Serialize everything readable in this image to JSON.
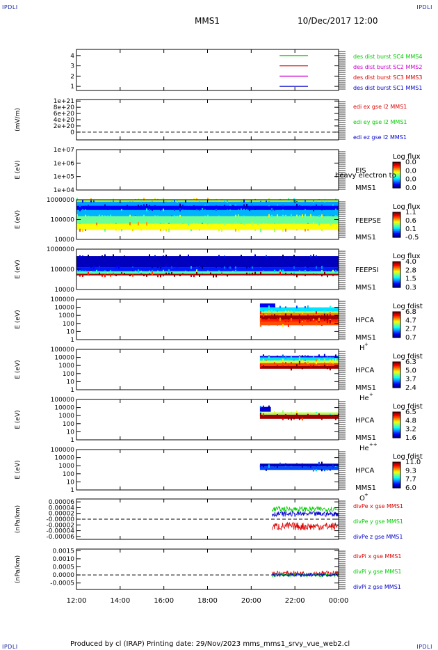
{
  "header": {
    "corner_label": "IPDLI",
    "spacecraft": "MMS1",
    "datetime": "10/Dec/2017 12:00"
  },
  "footer": {
    "text": "Produced by cl (IRAP)   Printing date: 29/Nov/2023   mms_mms1_srvy_vue_web2.cl"
  },
  "colors": {
    "black": "#000000",
    "blue": "#0000cc",
    "green": "#00cc00",
    "red": "#dd0000",
    "magenta": "#cc00cc"
  },
  "chart_data": {
    "type": "heatmap",
    "time_axis": {
      "ticks": [
        "12:00",
        "14:00",
        "16:00",
        "18:00",
        "20:00",
        "22:00",
        "00:00"
      ],
      "range_hours": [
        12,
        24
      ]
    },
    "panels": [
      {
        "id": "des-dist",
        "type": "line",
        "ylabel": "",
        "yscale": "linear",
        "ylim": [
          0.6,
          4.6
        ],
        "yticks": [
          {
            "v": 4,
            "label": "4"
          },
          {
            "v": 3,
            "label": "3"
          },
          {
            "v": 2,
            "label": "2"
          },
          {
            "v": 1,
            "label": "1"
          }
        ],
        "series": [
          {
            "name": "des dist burst SC1 MMS1",
            "color": "#0000cc",
            "y": 1,
            "x": [
              21.3,
              22.6
            ]
          },
          {
            "name": "des dist burst SC2 MMS2",
            "color": "#cc00cc",
            "y": 2,
            "x": [
              21.3,
              22.6
            ]
          },
          {
            "name": "des dist burst SC3 MMS3",
            "color": "#dd0000",
            "y": 3,
            "x": [
              21.3,
              22.6
            ]
          },
          {
            "name": "des dist burst SC4 MMS4",
            "color": "#00cc00",
            "y": 4,
            "x": [
              21.3,
              22.6
            ]
          }
        ],
        "legend_order": [
          3,
          1,
          2,
          0
        ]
      },
      {
        "id": "edi-e",
        "type": "line",
        "ylabel": "(mV/m)",
        "yscale": "linear",
        "ylim": [
          -2.5e+20,
          1.05e+21
        ],
        "yticks": [
          {
            "v": 1e+21,
            "label": "1e+21"
          },
          {
            "v": 8e+20,
            "label": "8e+20"
          },
          {
            "v": 6e+20,
            "label": "6e+20"
          },
          {
            "v": 4e+20,
            "label": "4e+20"
          },
          {
            "v": 2e+20,
            "label": "2e+20"
          },
          {
            "v": 0,
            "label": "0"
          }
        ],
        "zero_line": true,
        "series": [
          {
            "name": "edi ex gse l2 MMS1",
            "color": "#dd0000"
          },
          {
            "name": "edi ey gse l2 MMS1",
            "color": "#00cc00"
          },
          {
            "name": "edi ez gse l2 MMS1",
            "color": "#0000cc"
          }
        ]
      },
      {
        "id": "eis",
        "type": "spectrogram",
        "ylabel": "E (eV)",
        "yscale": "log",
        "ylim": [
          10000,
          10000000
        ],
        "yticks": [
          {
            "v": 10000000,
            "label": "1e+07"
          },
          {
            "v": 1000000,
            "label": "1e+06"
          },
          {
            "v": 100000,
            "label": "1e+05"
          },
          {
            "v": 10000,
            "label": "1e+04"
          }
        ],
        "labels": [
          "EIS",
          "MMS1"
        ],
        "overlay_text": "heavy electron to",
        "colorbar": {
          "title": "Log flux",
          "ticks": [
            "0.0",
            "0.0",
            "0.0",
            "0.0"
          ]
        },
        "bands": []
      },
      {
        "id": "feepse",
        "type": "spectrogram",
        "ylabel": "E (eV)",
        "yscale": "log",
        "ylim": [
          10000,
          1000000
        ],
        "yticks": [
          {
            "v": 1000000,
            "label": "1000000"
          },
          {
            "v": 100000,
            "label": "100000"
          },
          {
            "v": 10000,
            "label": "10000"
          }
        ],
        "labels": [
          "FEEPSE",
          "MMS1"
        ],
        "colorbar": {
          "title": "Log flux",
          "ticks": [
            "1.1",
            "0.6",
            "0.1",
            "-0.5"
          ]
        },
        "bands": [
          {
            "x": [
              12,
              24
            ],
            "e": [
              800000,
              1000000
            ],
            "level": 0.55
          },
          {
            "x": [
              12,
              24
            ],
            "e": [
              500000,
              800000
            ],
            "level": 0.28
          },
          {
            "x": [
              12,
              24
            ],
            "e": [
              300000,
              500000
            ],
            "level": 0.12
          },
          {
            "x": [
              12,
              24
            ],
            "e": [
              150000,
              300000
            ],
            "level": 0.3
          },
          {
            "x": [
              12,
              24
            ],
            "e": [
              60000,
              150000
            ],
            "level": 0.48
          },
          {
            "x": [
              12,
              24
            ],
            "e": [
              30000,
              60000
            ],
            "level": 0.62
          }
        ]
      },
      {
        "id": "feepsi",
        "type": "spectrogram",
        "ylabel": "E (eV)",
        "yscale": "log",
        "ylim": [
          10000,
          1000000
        ],
        "yticks": [
          {
            "v": 1000000,
            "label": "1000000"
          },
          {
            "v": 100000,
            "label": "100000"
          },
          {
            "v": 10000,
            "label": "10000"
          }
        ],
        "labels": [
          "FEEPSI",
          "MMS1"
        ],
        "colorbar": {
          "title": "Log flux",
          "ticks": [
            "4.0",
            "2.8",
            "1.5",
            "0.3"
          ]
        },
        "bands": [
          {
            "x": [
              12,
              24
            ],
            "e": [
              120000,
              450000
            ],
            "level": 0.06
          },
          {
            "x": [
              12,
              24
            ],
            "e": [
              80000,
              120000
            ],
            "level": 0.15
          },
          {
            "x": [
              12,
              24
            ],
            "e": [
              60000,
              80000
            ],
            "level": 0.45
          },
          {
            "x": [
              12,
              24
            ],
            "e": [
              50000,
              60000
            ],
            "level": 0.97
          }
        ]
      },
      {
        "id": "hpca-h",
        "type": "spectrogram",
        "ylabel": "E (eV)",
        "yscale": "log",
        "ylim": [
          1,
          100000
        ],
        "yticks": [
          {
            "v": 100000,
            "label": "100000"
          },
          {
            "v": 10000,
            "label": "10000"
          },
          {
            "v": 1000,
            "label": "1000"
          },
          {
            "v": 100,
            "label": "100"
          },
          {
            "v": 10,
            "label": "10"
          },
          {
            "v": 1,
            "label": "1"
          }
        ],
        "labels": [
          "HPCA",
          "MMS1"
        ],
        "species": "H",
        "charge": "+",
        "colorbar": {
          "title": "Log fdist",
          "ticks": [
            "6.8",
            "4.7",
            "2.7",
            "0.7"
          ]
        },
        "bands": [
          {
            "x": [
              20.4,
              21.1
            ],
            "e": [
              10000,
              30000
            ],
            "level": 0.12
          },
          {
            "x": [
              20.4,
              24
            ],
            "e": [
              3000,
              10000
            ],
            "level": 0.35
          },
          {
            "x": [
              20.4,
              24
            ],
            "e": [
              2000,
              3000
            ],
            "level": 0.55
          },
          {
            "x": [
              20.4,
              24
            ],
            "e": [
              1000,
              2000
            ],
            "level": 0.75
          },
          {
            "x": [
              20.4,
              24
            ],
            "e": [
              300,
              1000
            ],
            "level": 0.97
          },
          {
            "x": [
              20.4,
              24
            ],
            "e": [
              150,
              300
            ],
            "level": 0.85
          },
          {
            "x": [
              20.4,
              24
            ],
            "e": [
              60,
              150
            ],
            "level": 0.8
          }
        ]
      },
      {
        "id": "hpca-he",
        "type": "spectrogram",
        "ylabel": "E (eV)",
        "yscale": "log",
        "ylim": [
          1,
          100000
        ],
        "yticks": [
          {
            "v": 100000,
            "label": "100000"
          },
          {
            "v": 10000,
            "label": "10000"
          },
          {
            "v": 1000,
            "label": "1000"
          },
          {
            "v": 100,
            "label": "100"
          },
          {
            "v": 10,
            "label": "10"
          },
          {
            "v": 1,
            "label": "1"
          }
        ],
        "labels": [
          "HPCA",
          "MMS1"
        ],
        "species": "He",
        "charge": "+",
        "colorbar": {
          "title": "Log fdist",
          "ticks": [
            "6.3",
            "5.0",
            "3.7",
            "2.4"
          ]
        },
        "bands": [
          {
            "x": [
              20.4,
              24
            ],
            "e": [
              10000,
              15000
            ],
            "level": 0.1
          },
          {
            "x": [
              20.4,
              24
            ],
            "e": [
              4000,
              10000
            ],
            "level": 0.35
          },
          {
            "x": [
              20.4,
              24
            ],
            "e": [
              2000,
              4000
            ],
            "level": 0.6
          },
          {
            "x": [
              20.4,
              24
            ],
            "e": [
              900,
              2000
            ],
            "level": 0.8
          },
          {
            "x": [
              20.4,
              24
            ],
            "e": [
              400,
              900
            ],
            "level": 0.97
          }
        ]
      },
      {
        "id": "hpca-hepp",
        "type": "spectrogram",
        "ylabel": "E (eV)",
        "yscale": "log",
        "ylim": [
          1,
          100000
        ],
        "yticks": [
          {
            "v": 100000,
            "label": "100000"
          },
          {
            "v": 10000,
            "label": "10000"
          },
          {
            "v": 1000,
            "label": "1000"
          },
          {
            "v": 100,
            "label": "100"
          },
          {
            "v": 10,
            "label": "10"
          },
          {
            "v": 1,
            "label": "1"
          }
        ],
        "labels": [
          "HPCA",
          "MMS1"
        ],
        "species": "He",
        "charge": "++",
        "colorbar": {
          "title": "Log fdist",
          "ticks": [
            "6.5",
            "4.8",
            "3.2",
            "1.6"
          ]
        },
        "bands": [
          {
            "x": [
              20.4,
              20.9
            ],
            "e": [
              3000,
              12000
            ],
            "level": 0.08
          },
          {
            "x": [
              20.4,
              24
            ],
            "e": [
              1300,
              2500
            ],
            "level": 0.55
          },
          {
            "x": [
              20.4,
              24
            ],
            "e": [
              400,
              1300
            ],
            "level": 0.97
          }
        ]
      },
      {
        "id": "hpca-o",
        "type": "spectrogram",
        "ylabel": "E (eV)",
        "yscale": "log",
        "ylim": [
          1,
          100000
        ],
        "yticks": [
          {
            "v": 100000,
            "label": "100000"
          },
          {
            "v": 10000,
            "label": "10000"
          },
          {
            "v": 1000,
            "label": "1000"
          },
          {
            "v": 100,
            "label": "100"
          },
          {
            "v": 10,
            "label": "10"
          },
          {
            "v": 1,
            "label": "1"
          }
        ],
        "labels": [
          "HPCA",
          "MMS1"
        ],
        "species": "O",
        "charge": "+",
        "colorbar": {
          "title": "Log fdist",
          "ticks": [
            "11.0",
            "9.3",
            "7.7",
            "6.0"
          ]
        },
        "bands": [
          {
            "x": [
              20.4,
              24
            ],
            "e": [
              800,
              1800
            ],
            "level": 0.06
          },
          {
            "x": [
              20.4,
              24
            ],
            "e": [
              300,
              800
            ],
            "level": 0.2
          }
        ]
      },
      {
        "id": "divpe",
        "type": "line",
        "ylabel": "(nPa/km)",
        "yscale": "linear",
        "ylim": [
          -7e-05,
          7e-05
        ],
        "yticks": [
          {
            "v": 6e-05,
            "label": "0.00006"
          },
          {
            "v": 4e-05,
            "label": "0.00004"
          },
          {
            "v": 2e-05,
            "label": "0.00002"
          },
          {
            "v": 0,
            "label": "-0.00000"
          },
          {
            "v": -2e-05,
            "label": "-0.00002"
          },
          {
            "v": -4e-05,
            "label": "-0.00004"
          },
          {
            "v": -6e-05,
            "label": "-0.00006"
          }
        ],
        "zero_line": true,
        "series": [
          {
            "name": "divPe x gse MMS1",
            "color": "#dd0000",
            "x": [
              20.95,
              24
            ],
            "mean": -2.5e-05,
            "spread": 1.4e-05
          },
          {
            "name": "divPe y gse MMS1",
            "color": "#00cc00",
            "x": [
              20.95,
              24
            ],
            "mean": 3.5e-05,
            "spread": 9e-06
          },
          {
            "name": "divPe z gse MMS1",
            "color": "#0000cc",
            "x": [
              20.95,
              24
            ],
            "mean": 1.8e-05,
            "spread": 9e-06
          }
        ]
      },
      {
        "id": "divpi",
        "type": "line",
        "ylabel": "(nPa/km)",
        "yscale": "linear",
        "ylim": [
          -0.0009,
          0.0016
        ],
        "yticks": [
          {
            "v": 0.0015,
            "label": "0.0015"
          },
          {
            "v": 0.001,
            "label": "0.0010"
          },
          {
            "v": 0.0005,
            "label": "0.0005"
          },
          {
            "v": 0,
            "label": "0.0000"
          },
          {
            "v": -0.0005,
            "label": "-0.0005"
          }
        ],
        "zero_line": true,
        "series": [
          {
            "name": "divPi x gse MMS1",
            "color": "#dd0000",
            "x": [
              20.95,
              24
            ],
            "mean": 0.0001,
            "spread": 0.00015
          },
          {
            "name": "divPi y gse MMS1",
            "color": "#00cc00",
            "x": [
              20.95,
              24
            ],
            "mean": 0.0,
            "spread": 0.00012
          },
          {
            "name": "divPi z gse MMS1",
            "color": "#0000cc",
            "x": [
              20.95,
              24
            ],
            "mean": 0.0,
            "spread": 0.0001
          }
        ]
      }
    ]
  }
}
